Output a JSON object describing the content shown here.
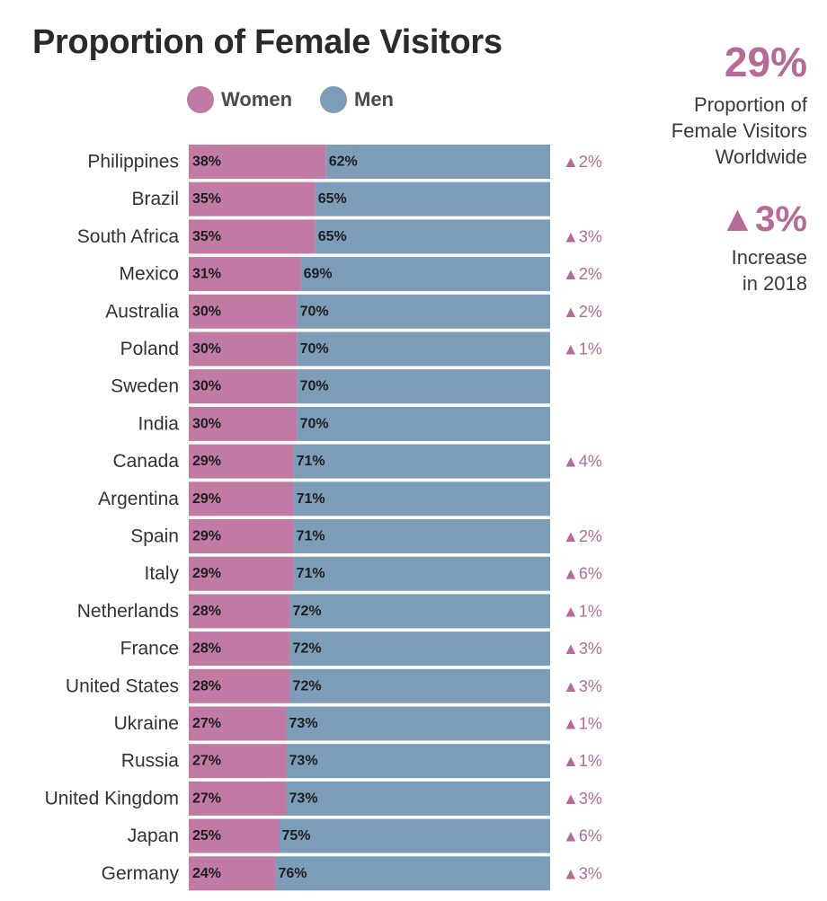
{
  "title": "Proportion of Female Visitors",
  "legend": {
    "women": "Women",
    "men": "Men"
  },
  "summary": {
    "worldwide_value": "29%",
    "worldwide_label_1": "Proportion of",
    "worldwide_label_2": "Female Visitors",
    "worldwide_label_3": "Worldwide",
    "increase_value": "▲3%",
    "increase_label_1": "Increase",
    "increase_label_2": "in 2018"
  },
  "colors": {
    "women": "#c07aa4",
    "men": "#7c9cb8",
    "accent": "#b56a98"
  },
  "chart_data": {
    "type": "bar",
    "orientation": "horizontal",
    "stacked": true,
    "title": "Proportion of Female Visitors",
    "categories": [
      "Philippines",
      "Brazil",
      "South Africa",
      "Mexico",
      "Australia",
      "Poland",
      "Sweden",
      "India",
      "Canada",
      "Argentina",
      "Spain",
      "Italy",
      "Netherlands",
      "France",
      "United States",
      "Ukraine",
      "Russia",
      "United Kingdom",
      "Japan",
      "Germany"
    ],
    "series": [
      {
        "name": "Women",
        "values": [
          38,
          35,
          35,
          31,
          30,
          30,
          30,
          30,
          29,
          29,
          29,
          29,
          28,
          28,
          28,
          27,
          27,
          27,
          25,
          24
        ]
      },
      {
        "name": "Men",
        "values": [
          62,
          65,
          65,
          69,
          70,
          70,
          70,
          70,
          71,
          71,
          71,
          71,
          72,
          72,
          72,
          73,
          73,
          73,
          75,
          76
        ]
      }
    ],
    "changes": [
      "▲2%",
      "",
      "▲3%",
      "▲2%",
      "▲2%",
      "▲1%",
      "",
      "",
      "▲4%",
      "",
      "▲2%",
      "▲6%",
      "▲1%",
      "▲3%",
      "▲3%",
      "▲1%",
      "▲1%",
      "▲3%",
      "▲6%",
      "▲3%"
    ],
    "value_suffix": "%",
    "xlim": [
      0,
      100
    ],
    "legend_position": "top"
  }
}
